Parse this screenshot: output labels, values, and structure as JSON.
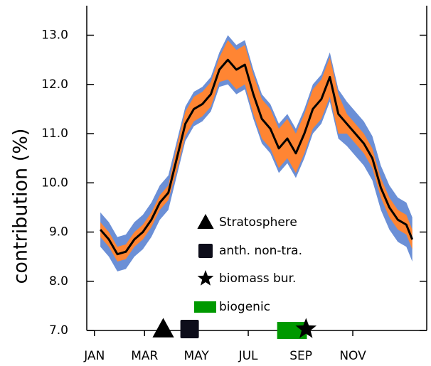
{
  "chart_data": {
    "type": "line",
    "ylabel": "contribution (%)",
    "x": [
      8,
      18,
      28,
      38,
      48,
      58,
      68,
      78,
      88,
      98,
      108,
      118,
      128,
      138,
      148,
      158,
      168,
      178,
      188,
      198,
      208,
      218,
      228,
      238,
      248,
      258,
      268,
      278,
      288,
      298,
      308,
      318,
      328,
      338,
      348,
      358,
      368,
      375
    ],
    "series": [
      {
        "color": "#000000",
        "values": [
          9.05,
          8.85,
          8.55,
          8.6,
          8.85,
          9.0,
          9.25,
          9.6,
          9.8,
          10.5,
          11.2,
          11.5,
          11.6,
          11.8,
          12.3,
          12.5,
          12.3,
          12.4,
          11.8,
          11.3,
          11.1,
          10.7,
          10.9,
          10.6,
          11.0,
          11.5,
          11.7,
          12.15,
          11.4,
          11.2,
          11.0,
          10.8,
          10.5,
          9.9,
          9.5,
          9.25,
          9.15,
          8.85
        ]
      }
    ],
    "bands": [
      {
        "color": "#6b8fd6",
        "lower": [
          8.7,
          8.5,
          8.2,
          8.25,
          8.5,
          8.65,
          8.9,
          9.25,
          9.45,
          10.15,
          10.85,
          11.15,
          11.25,
          11.45,
          11.95,
          12.0,
          11.8,
          11.9,
          11.3,
          10.8,
          10.6,
          10.2,
          10.4,
          10.1,
          10.5,
          11.0,
          11.2,
          11.65,
          10.9,
          10.75,
          10.55,
          10.35,
          10.05,
          9.45,
          9.05,
          8.8,
          8.7,
          8.4
        ],
        "upper": [
          9.4,
          9.2,
          8.9,
          8.95,
          9.2,
          9.35,
          9.6,
          9.95,
          10.15,
          10.85,
          11.55,
          11.85,
          11.95,
          12.15,
          12.65,
          13.0,
          12.8,
          12.9,
          12.3,
          11.8,
          11.6,
          11.2,
          11.4,
          11.1,
          11.5,
          12.0,
          12.2,
          12.65,
          11.9,
          11.65,
          11.45,
          11.25,
          10.95,
          10.35,
          9.95,
          9.7,
          9.6,
          9.3
        ]
      },
      {
        "color": "#ff8533",
        "lower": [
          8.9,
          8.7,
          8.4,
          8.45,
          8.7,
          8.85,
          9.1,
          9.45,
          9.65,
          10.25,
          10.95,
          11.25,
          11.35,
          11.55,
          12.05,
          12.1,
          11.9,
          12.0,
          11.4,
          10.9,
          10.7,
          10.3,
          10.5,
          10.2,
          10.6,
          11.1,
          11.3,
          11.75,
          11.0,
          11.0,
          10.8,
          10.6,
          10.3,
          9.7,
          9.3,
          9.05,
          8.95,
          8.65
        ],
        "upper": [
          9.2,
          9.0,
          8.7,
          8.75,
          9.0,
          9.15,
          9.4,
          9.75,
          9.95,
          10.75,
          11.45,
          11.75,
          11.85,
          12.05,
          12.55,
          12.9,
          12.7,
          12.8,
          12.2,
          11.7,
          11.5,
          11.1,
          11.3,
          11.0,
          11.4,
          11.9,
          12.1,
          12.55,
          11.8,
          11.4,
          11.2,
          11.0,
          10.7,
          10.1,
          9.7,
          9.45,
          9.35,
          9.05
        ]
      }
    ],
    "xlim": [
      -8,
      392
    ],
    "xticks": [
      {
        "value": 1,
        "label": "JAN"
      },
      {
        "value": 60,
        "label": "MAR"
      },
      {
        "value": 121,
        "label": "MAY"
      },
      {
        "value": 182,
        "label": "JUL"
      },
      {
        "value": 244,
        "label": "SEP"
      },
      {
        "value": 305,
        "label": "NOV"
      }
    ],
    "ylim": [
      7,
      13.6
    ],
    "yticks": [
      {
        "value": 7,
        "label": "7.0"
      },
      {
        "value": 8,
        "label": "8.0"
      },
      {
        "value": 9,
        "label": "9.0"
      },
      {
        "value": 10,
        "label": "10.0"
      },
      {
        "value": 11,
        "label": "11.0"
      },
      {
        "value": 12,
        "label": "12.0"
      },
      {
        "value": 13,
        "label": "13.0"
      }
    ],
    "markers": [
      {
        "label": "Stratosphere",
        "shape": "triangle",
        "color": "#000000",
        "x": 82
      },
      {
        "label": "anth. non-tra.",
        "shape": "square",
        "color": "#0d0d1a",
        "x": 113
      },
      {
        "label": "biomass bur.",
        "shape": "star",
        "color": "#000000",
        "x": 250
      },
      {
        "label": "biogenic",
        "shape": "bar",
        "color": "#009900",
        "x": [
          216,
          251
        ]
      }
    ]
  }
}
